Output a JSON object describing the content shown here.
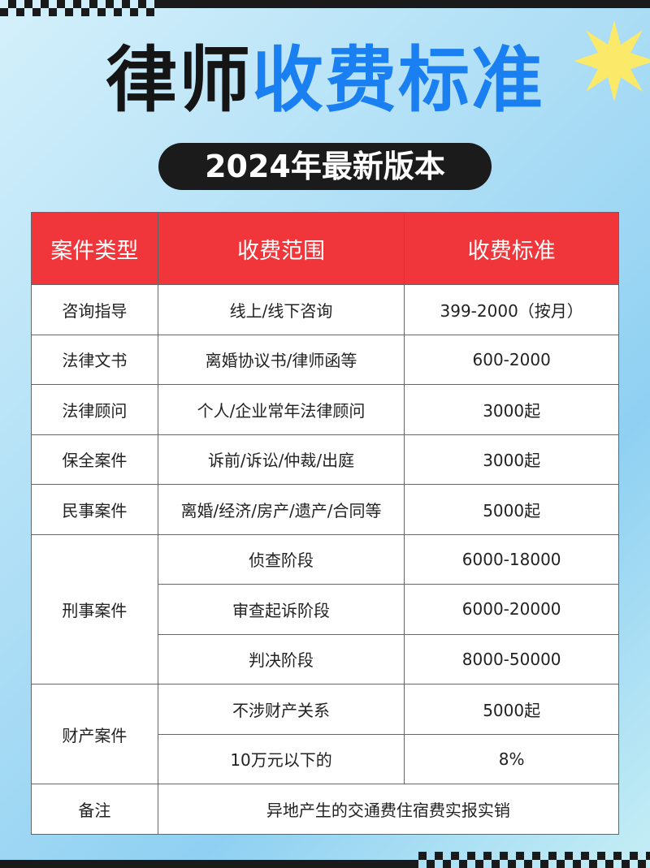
{
  "title": {
    "black": "律师",
    "blue": "收费标准"
  },
  "subtitle": "2024年最新版本",
  "colors": {
    "header": "#f0363a",
    "title_blue": "#1a7ff0",
    "star": "#fbe96a"
  },
  "table": {
    "headers": [
      "案件类型",
      "收费范围",
      "收费标准"
    ],
    "rows": [
      {
        "type": "咨询指导",
        "items": [
          [
            "线上/线下咨询",
            "399-2000（按月）"
          ]
        ]
      },
      {
        "type": "法律文书",
        "items": [
          [
            "离婚协议书/律师函等",
            "600-2000"
          ]
        ]
      },
      {
        "type": "法律顾问",
        "items": [
          [
            "个人/企业常年法律顾问",
            "3000起"
          ]
        ]
      },
      {
        "type": "保全案件",
        "items": [
          [
            "诉前/诉讼/仲裁/出庭",
            "3000起"
          ]
        ]
      },
      {
        "type": "民事案件",
        "items": [
          [
            "离婚/经济/房产/遗产/合同等",
            "5000起"
          ]
        ]
      },
      {
        "type": "刑事案件",
        "items": [
          [
            "侦查阶段",
            "6000-18000"
          ],
          [
            "审查起诉阶段",
            "6000-20000"
          ],
          [
            "判决阶段",
            "8000-50000"
          ]
        ]
      },
      {
        "type": "财产案件",
        "items": [
          [
            "不涉财产关系",
            "5000起"
          ],
          [
            "10万元以下的",
            "8%"
          ]
        ]
      }
    ],
    "note": {
      "label": "备注",
      "text": "异地产生的交通费住宿费实报实销"
    }
  }
}
